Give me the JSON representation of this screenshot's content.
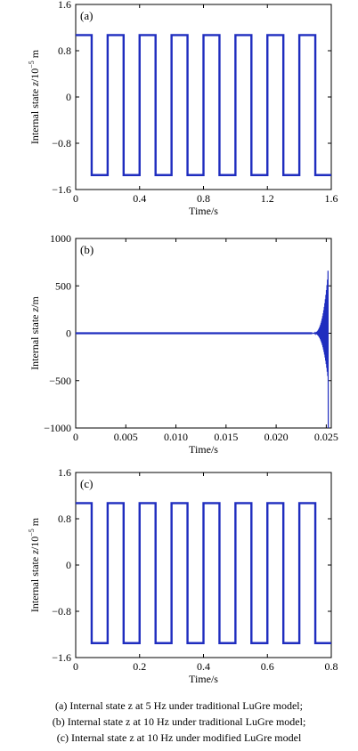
{
  "colors": {
    "series": "#1f2dbf",
    "axis": "#000000"
  },
  "chart_data": [
    {
      "type": "line",
      "panel_label": "(a)",
      "xlabel": "Time/s",
      "ylabel_main": "Internal state ",
      "ylabel_italic": "z",
      "ylabel_unit": "/10",
      "ylabel_exp": "−5",
      "ylabel_tail": " m",
      "xlim": [
        0,
        1.6
      ],
      "ylim": [
        -1.6,
        1.6
      ],
      "xticks": [
        0,
        0.4,
        0.8,
        1.2,
        1.6
      ],
      "xtick_labels": [
        "0",
        "0.4",
        "0.8",
        "1.2",
        "1.6"
      ],
      "yticks": [
        1.6,
        0.8,
        0,
        -0.8,
        -1.6
      ],
      "ytick_labels": [
        "1.6",
        "0.8",
        "0",
        "−0.8",
        "−1.6"
      ],
      "waveform": {
        "kind": "square",
        "frequency_hz": 5,
        "high": 1.07,
        "low": -1.35,
        "t_end": 1.6,
        "start_high": true
      }
    },
    {
      "type": "line",
      "panel_label": "(b)",
      "xlabel": "Time/s",
      "ylabel_main": "Internal state ",
      "ylabel_italic": "z",
      "ylabel_unit": "/m",
      "ylabel_exp": "",
      "ylabel_tail": "",
      "xlim": [
        0,
        0.0255
      ],
      "ylim": [
        -1000,
        1000
      ],
      "xticks": [
        0,
        0.005,
        0.01,
        0.015,
        0.02,
        0.025
      ],
      "xtick_labels": [
        "0",
        "0.005",
        "0.010",
        "0.015",
        "0.020",
        "0.025"
      ],
      "yticks": [
        1000,
        500,
        0,
        -500,
        -1000
      ],
      "ytick_labels": [
        "1000",
        "500",
        "0",
        "−500",
        "−1000"
      ],
      "waveform": {
        "kind": "divergent",
        "baseline": 0,
        "divergence_start": 0.0236,
        "t_end": 0.0252,
        "peak_max": 660,
        "peak_min": -1000
      }
    },
    {
      "type": "line",
      "panel_label": "(c)",
      "xlabel": "Time/s",
      "ylabel_main": "Internal state ",
      "ylabel_italic": "z",
      "ylabel_unit": "/10",
      "ylabel_exp": "−5",
      "ylabel_tail": " m",
      "xlim": [
        0,
        0.8
      ],
      "ylim": [
        -1.6,
        1.6
      ],
      "xticks": [
        0,
        0.2,
        0.4,
        0.6,
        0.8
      ],
      "xtick_labels": [
        "0",
        "0.2",
        "0.4",
        "0.6",
        "0.8"
      ],
      "yticks": [
        1.6,
        0.8,
        0,
        -0.8,
        -1.6
      ],
      "ytick_labels": [
        "1.6",
        "0.8",
        "0",
        "−0.8",
        "−1.6"
      ],
      "waveform": {
        "kind": "square",
        "frequency_hz": 10,
        "high": 1.07,
        "low": -1.35,
        "t_end": 0.8,
        "start_high": true
      }
    }
  ],
  "captions": [
    "(a) Internal state z at 5 Hz under traditional LuGre model;",
    "(b) Internal state z at 10 Hz under traditional LuGre model;",
    "(c) Internal state z at 10 Hz under modified LuGre model"
  ]
}
